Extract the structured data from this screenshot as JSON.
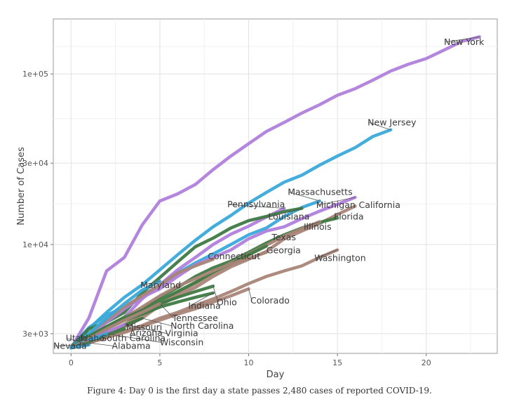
{
  "caption": "Figure 4: Day 0 is the first day a state passes 2,480 cases of reported COVID-19.",
  "chart_data": {
    "type": "line",
    "title": "",
    "xlabel": "Day",
    "ylabel": "Number of Cases",
    "x_scale": "linear",
    "y_scale": "log",
    "xlim": [
      -1,
      24
    ],
    "ylim": [
      2300,
      210000
    ],
    "x_ticks": [
      0,
      5,
      10,
      15,
      20
    ],
    "x_tick_labels": [
      "0",
      "5",
      "10",
      "15",
      "20"
    ],
    "y_ticks": [
      3000,
      10000,
      30000,
      100000
    ],
    "y_tick_labels": [
      "3e+03",
      "1e+04",
      "3e+04",
      "1e+05"
    ],
    "grid": true,
    "legend": "none (direct labels)",
    "colors": {
      "purple": "#b07fdc",
      "blue": "#3aa9d9",
      "green": "#3f7a45",
      "brown": "#a98578"
    },
    "series": [
      {
        "name": "New York",
        "color": "#b07fdc",
        "x": [
          0,
          1,
          2,
          3,
          4,
          5,
          6,
          7,
          8,
          9,
          10,
          11,
          12,
          13,
          14,
          15,
          16,
          17,
          18,
          19,
          20,
          21,
          22,
          23
        ],
        "y": [
          2480,
          3700,
          7000,
          8400,
          13000,
          18000,
          19800,
          22500,
          27500,
          33000,
          39000,
          46000,
          52000,
          59000,
          66000,
          75000,
          82000,
          92000,
          104000,
          114000,
          123000,
          138000,
          155000,
          165000
        ]
      },
      {
        "name": "New Jersey",
        "color": "#3aa9d9",
        "x": [
          0,
          1,
          2,
          3,
          4,
          5,
          6,
          7,
          8,
          9,
          10,
          11,
          12,
          13,
          14,
          15,
          16,
          17,
          18
        ],
        "y": [
          2500,
          3200,
          4000,
          4900,
          5800,
          7100,
          8700,
          10600,
          12700,
          14800,
          17500,
          20200,
          23200,
          25500,
          29200,
          33000,
          37000,
          43000,
          47000
        ]
      },
      {
        "name": "Massachusetts",
        "color": "#3aa9d9",
        "x": [
          0,
          1,
          2,
          3,
          4,
          5,
          6,
          7,
          8,
          9,
          10,
          11,
          12,
          13,
          14
        ],
        "y": [
          2500,
          3250,
          3850,
          4300,
          5000,
          5800,
          6800,
          7800,
          8800,
          10000,
          11400,
          12500,
          14600,
          16500,
          18000
        ]
      },
      {
        "name": "Pennsylvania",
        "color": "#b07fdc",
        "x": [
          0,
          1,
          2,
          3,
          4,
          5,
          6,
          7,
          8,
          9,
          10,
          11,
          12
        ],
        "y": [
          2480,
          2800,
          3200,
          3750,
          4800,
          5800,
          7100,
          8400,
          10000,
          11500,
          12800,
          14500,
          16300
        ]
      },
      {
        "name": "Louisiana",
        "color": "#3f7a45",
        "x": [
          0,
          1,
          2,
          3,
          4,
          5,
          6,
          7,
          8,
          9,
          10,
          11,
          12,
          13
        ],
        "y": [
          2480,
          3200,
          3500,
          4000,
          5200,
          6400,
          7900,
          9700,
          10900,
          12500,
          13800,
          14600,
          15600,
          16300
        ]
      },
      {
        "name": "Michigan",
        "color": "#b07fdc",
        "x": [
          0,
          1,
          2,
          3,
          4,
          5,
          6,
          7,
          8,
          9,
          10,
          11,
          12,
          13,
          14,
          15,
          16
        ],
        "y": [
          2480,
          2900,
          3500,
          4200,
          4900,
          5500,
          6500,
          7600,
          8400,
          9300,
          10800,
          12000,
          12700,
          14200,
          15700,
          17200,
          18900
        ]
      },
      {
        "name": "California",
        "color": "#a98578",
        "x": [
          0,
          1,
          2,
          3,
          4,
          5,
          6,
          7,
          8,
          9,
          10,
          11,
          12,
          13,
          14,
          15,
          16
        ],
        "y": [
          2480,
          2650,
          3000,
          3300,
          3700,
          4400,
          5000,
          5600,
          6500,
          7400,
          8200,
          9100,
          10800,
          12000,
          13300,
          15000,
          16800
        ]
      },
      {
        "name": "Florida",
        "color": "#3f7a45",
        "x": [
          0,
          1,
          2,
          3,
          4,
          5,
          6,
          7,
          8,
          9,
          10,
          11,
          12,
          13,
          14,
          15
        ],
        "y": [
          2480,
          2800,
          3200,
          3700,
          4200,
          4900,
          5600,
          6500,
          7300,
          8000,
          9000,
          10200,
          11400,
          12500,
          13500,
          14300
        ]
      },
      {
        "name": "Illinois",
        "color": "#a98578",
        "x": [
          0,
          1,
          2,
          3,
          4,
          5,
          6,
          7,
          8,
          9,
          10,
          11,
          12,
          13,
          14
        ],
        "y": [
          2480,
          2700,
          3000,
          3400,
          3900,
          4500,
          5200,
          5900,
          6800,
          7800,
          8800,
          9900,
          11200,
          12400,
          13600
        ]
      },
      {
        "name": "Texas",
        "color": "#3f7a45",
        "x": [
          0,
          1,
          2,
          3,
          4,
          5,
          6,
          7,
          8,
          9,
          10,
          11
        ],
        "y": [
          2480,
          2850,
          3300,
          3750,
          4200,
          4700,
          5300,
          6000,
          6900,
          7700,
          8700,
          9800
        ]
      },
      {
        "name": "Georgia",
        "color": "#a98578",
        "x": [
          0,
          1,
          2,
          3,
          4,
          5,
          6,
          7,
          8,
          9,
          10,
          11
        ],
        "y": [
          2480,
          2800,
          3200,
          3700,
          4300,
          5000,
          5700,
          6300,
          7000,
          7700,
          8300,
          9000
        ]
      },
      {
        "name": "Connecticut",
        "color": "#a98578",
        "x": [
          0,
          1,
          2,
          3,
          4,
          5,
          6,
          7,
          8
        ],
        "y": [
          2480,
          3000,
          3600,
          4300,
          5000,
          5800,
          6800,
          7500,
          8200
        ]
      },
      {
        "name": "Washington",
        "color": "#a98578",
        "x": [
          0,
          1,
          2,
          3,
          4,
          5,
          6,
          7,
          8,
          9,
          10,
          11,
          12,
          13,
          14,
          15
        ],
        "y": [
          2480,
          2650,
          2850,
          3100,
          3350,
          3700,
          4000,
          4400,
          4800,
          5300,
          5900,
          6500,
          7000,
          7500,
          8400,
          9300
        ]
      },
      {
        "name": "Maryland",
        "color": "#3aa9d9",
        "x": [
          0,
          1,
          2,
          3,
          4,
          5
        ],
        "y": [
          2480,
          3000,
          3700,
          4500,
          5400,
          6100
        ]
      },
      {
        "name": "Colorado",
        "color": "#a98578",
        "x": [
          0,
          1,
          2,
          3,
          4,
          5,
          6,
          7,
          8,
          9,
          10
        ],
        "y": [
          2480,
          2650,
          2850,
          3050,
          3300,
          3600,
          3900,
          4200,
          4600,
          5000,
          5500
        ]
      },
      {
        "name": "Indiana",
        "color": "#3f7a45",
        "x": [
          0,
          1,
          2,
          3,
          4,
          5,
          6,
          7,
          8
        ],
        "y": [
          2480,
          2800,
          3200,
          3600,
          3900,
          4300,
          4600,
          4900,
          5200
        ]
      },
      {
        "name": "Ohio",
        "color": "#3f7a45",
        "x": [
          0,
          1,
          2,
          3,
          4,
          5,
          6,
          7,
          8
        ],
        "y": [
          2480,
          2900,
          3300,
          3700,
          4100,
          4500,
          4900,
          5300,
          5700
        ]
      },
      {
        "name": "Tennessee",
        "color": "#a98578",
        "x": [
          0,
          1,
          2,
          3,
          4,
          5
        ],
        "y": [
          2480,
          2800,
          3200,
          3600,
          4000,
          4500
        ]
      },
      {
        "name": "North Carolina",
        "color": "#a98578",
        "x": [
          0,
          1,
          2,
          3,
          4
        ],
        "y": [
          2480,
          2750,
          3000,
          3300,
          3700
        ]
      },
      {
        "name": "Missouri",
        "color": "#3f7a45",
        "x": [
          0,
          1,
          2,
          3,
          4
        ],
        "y": [
          2480,
          2750,
          3050,
          3350,
          3700
        ]
      },
      {
        "name": "Virginia",
        "color": "#b07fdc",
        "x": [
          0,
          1,
          2,
          3
        ],
        "y": [
          2480,
          2750,
          3050,
          3400
        ]
      },
      {
        "name": "Arizona",
        "color": "#3f7a45",
        "x": [
          0,
          1,
          2,
          3
        ],
        "y": [
          2480,
          2700,
          2950,
          3200
        ]
      },
      {
        "name": "Wisconsin",
        "color": "#3aa9d9",
        "x": [
          0,
          1,
          2
        ],
        "y": [
          2480,
          2750,
          3000
        ]
      },
      {
        "name": "South Carolina",
        "color": "#a98578",
        "x": [
          0,
          1
        ],
        "y": [
          2480,
          2700
        ]
      },
      {
        "name": "Alabama",
        "color": "#3f7a45",
        "x": [
          0,
          1
        ],
        "y": [
          2480,
          2650
        ]
      },
      {
        "name": "Utah",
        "color": "#b07fdc",
        "x": [
          0,
          1
        ],
        "y": [
          2480,
          2600
        ]
      },
      {
        "name": "Idaho",
        "color": "#3f7a45",
        "x": [
          0,
          1
        ],
        "y": [
          2480,
          2620
        ]
      },
      {
        "name": "Nevada",
        "color": "#3aa9d9",
        "x": [
          0,
          1
        ],
        "y": [
          2480,
          2580
        ]
      }
    ],
    "labels": [
      {
        "text": "New York",
        "x": 21.0,
        "y": 148000
      },
      {
        "text": "New Jersey",
        "x": 16.7,
        "y": 50000
      },
      {
        "text": "Massachusetts",
        "x": 12.2,
        "y": 19500
      },
      {
        "text": "Pennsylvania",
        "x": 8.8,
        "y": 16500
      },
      {
        "text": "Louisiana",
        "x": 11.1,
        "y": 14000
      },
      {
        "text": "Michigan",
        "x": 13.8,
        "y": 16400
      },
      {
        "text": "California",
        "x": 16.2,
        "y": 16400
      },
      {
        "text": "Florida",
        "x": 14.8,
        "y": 14000
      },
      {
        "text": "Illinois",
        "x": 13.1,
        "y": 12200
      },
      {
        "text": "Texas",
        "x": 11.3,
        "y": 10600
      },
      {
        "text": "Georgia",
        "x": 11.0,
        "y": 8900
      },
      {
        "text": "Connecticut",
        "x": 7.7,
        "y": 8200
      },
      {
        "text": "Washington",
        "x": 13.7,
        "y": 8000
      },
      {
        "text": "Maryland",
        "x": 3.9,
        "y": 5550
      },
      {
        "text": "Colorado",
        "x": 10.1,
        "y": 4500
      },
      {
        "text": "Indiana",
        "x": 6.6,
        "y": 4200
      },
      {
        "text": "Ohio",
        "x": 8.2,
        "y": 4400
      },
      {
        "text": "Tennessee",
        "x": 5.7,
        "y": 3560
      },
      {
        "text": "North Carolina",
        "x": 5.6,
        "y": 3210
      },
      {
        "text": "Missouri",
        "x": 3.1,
        "y": 3150
      },
      {
        "text": "Virginia",
        "x": 5.3,
        "y": 2900
      },
      {
        "text": "Arizona",
        "x": 3.3,
        "y": 2910
      },
      {
        "text": "Wisconsin",
        "x": 5.0,
        "y": 2570
      },
      {
        "text": "South Carolina",
        "x": 1.7,
        "y": 2710
      },
      {
        "text": "Alabama",
        "x": 2.3,
        "y": 2450
      },
      {
        "text": "Utah",
        "x": -0.3,
        "y": 2710
      },
      {
        "text": "Idaho",
        "x": 0.5,
        "y": 2710
      },
      {
        "text": "Nevada",
        "x": -1.0,
        "y": 2450
      }
    ]
  }
}
